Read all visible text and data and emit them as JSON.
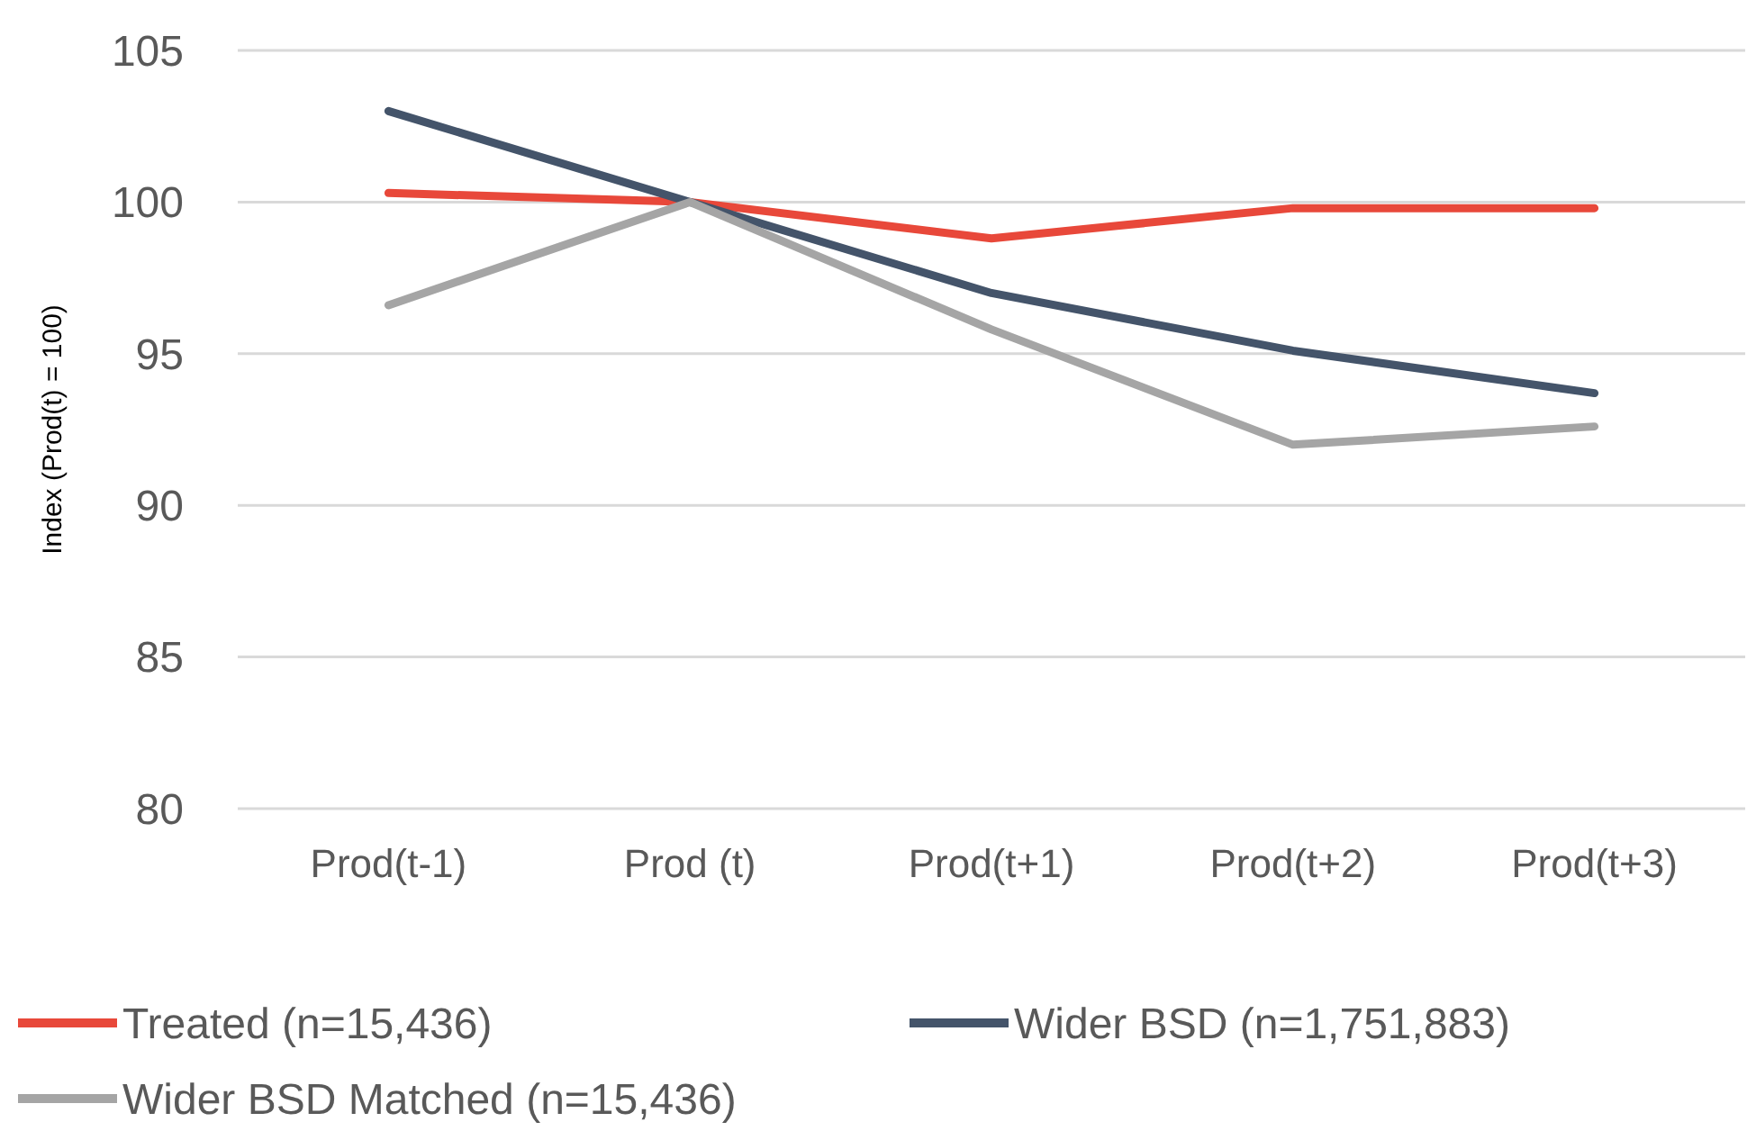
{
  "chart_data": {
    "type": "line",
    "ylabel": "Index (Prod(t) = 100)",
    "categories": [
      "Prod(t-1)",
      "Prod (t)",
      "Prod(t+1)",
      "Prod(t+2)",
      "Prod(t+3)"
    ],
    "series": [
      {
        "name": "Treated (n=15,436)",
        "color": "#e8483a",
        "values": [
          100.3,
          100,
          98.8,
          99.8,
          99.8
        ]
      },
      {
        "name": "Wider BSD (n=1,751,883)",
        "color": "#44546a",
        "values": [
          103,
          100,
          97,
          95.1,
          93.7
        ]
      },
      {
        "name": "Wider BSD Matched (n=15,436)",
        "color": "#a5a5a5",
        "values": [
          96.6,
          100,
          95.8,
          92,
          92.6
        ]
      }
    ],
    "ylim": [
      80,
      105
    ],
    "yticks": [
      80,
      85,
      90,
      95,
      100,
      105
    ],
    "grid": "y",
    "legend": "bottom",
    "marker": "none",
    "line_style": "solid"
  }
}
